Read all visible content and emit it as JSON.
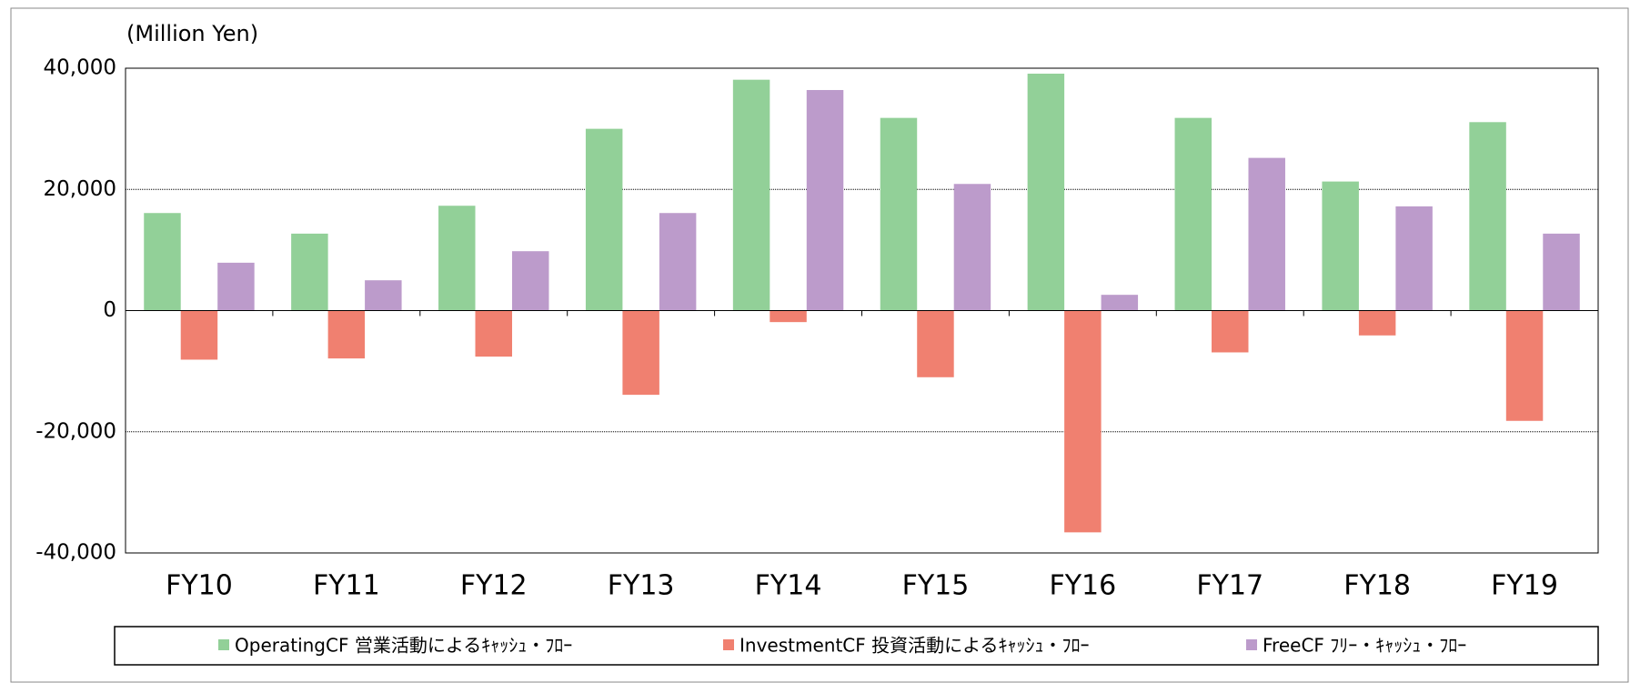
{
  "chart_data": {
    "type": "bar",
    "unit_label": "(Million Yen)",
    "categories": [
      "FY10",
      "FY11",
      "FY12",
      "FY13",
      "FY14",
      "FY15",
      "FY16",
      "FY17",
      "FY18",
      "FY19"
    ],
    "series": [
      {
        "name": "OperatingCF 営業活動によるｷｬｯｼｭ・ﾌﾛｰ",
        "color": "#92d098",
        "values": [
          16100,
          12700,
          17300,
          30000,
          38100,
          31800,
          39100,
          31800,
          21300,
          31100
        ]
      },
      {
        "name": "InvestmentCF 投資活動によるｷｬｯｼｭ・ﾌﾛｰ",
        "color": "#f08070",
        "values": [
          -8100,
          -7900,
          -7600,
          -13900,
          -1900,
          -11000,
          -36600,
          -6900,
          -4100,
          -18200
        ]
      },
      {
        "name": "FreeCF ﾌﾘｰ・ｷｬｯｼｭ・ﾌﾛｰ",
        "color": "#bc9bcb",
        "values": [
          7900,
          5000,
          9800,
          16100,
          36400,
          20900,
          2600,
          25200,
          17200,
          12700
        ]
      }
    ],
    "ylim": [
      -40000,
      40000
    ],
    "yticks": [
      {
        "value": -40000,
        "label": "-40,000"
      },
      {
        "value": -20000,
        "label": "-20,000"
      },
      0,
      {
        "value": 20000,
        "label": "20,000"
      },
      {
        "value": 40000,
        "label": "40,000"
      }
    ],
    "grid": true,
    "legend": "bottom"
  }
}
